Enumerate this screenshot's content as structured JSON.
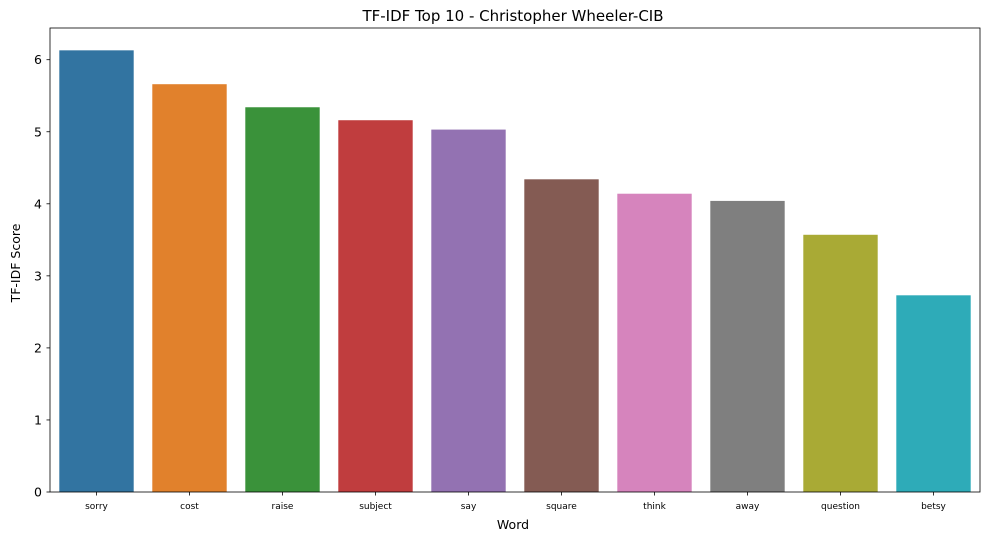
{
  "chart_data": {
    "type": "bar",
    "title": "TF-IDF Top 10 - Christopher Wheeler-CIB",
    "xlabel": "Word",
    "ylabel": "TF-IDF Score",
    "categories": [
      "sorry",
      "cost",
      "raise",
      "subject",
      "say",
      "square",
      "think",
      "away",
      "question",
      "betsy"
    ],
    "values": [
      6.13,
      5.66,
      5.34,
      5.16,
      5.03,
      4.34,
      4.14,
      4.04,
      3.57,
      2.73
    ],
    "colors": [
      "#3274a1",
      "#e1812c",
      "#3a923a",
      "#c03d3e",
      "#9372b2",
      "#845b53",
      "#d684bd",
      "#7f7f7f",
      "#a9aa35",
      "#2eabb8"
    ],
    "yticks": [
      0,
      1,
      2,
      3,
      4,
      5,
      6
    ],
    "ylim": [
      0,
      6.44
    ],
    "grid": false,
    "legend": "none"
  }
}
